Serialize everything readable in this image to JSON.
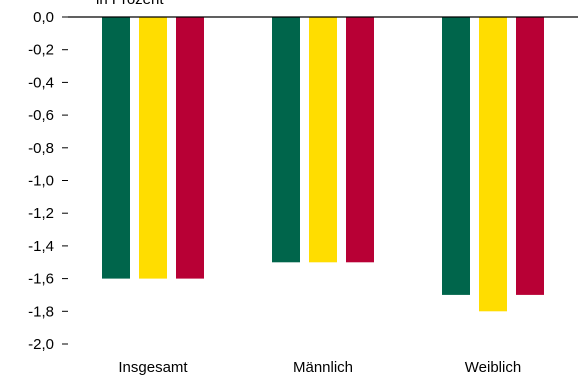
{
  "chart_data": {
    "type": "bar",
    "title": "in Prozent",
    "categories": [
      "Insgesamt",
      "Männlich",
      "Weiblich"
    ],
    "series": [
      {
        "values": [
          -1.6,
          -1.5,
          -1.7
        ],
        "color": "#00654b"
      },
      {
        "values": [
          -1.6,
          -1.5,
          -1.8
        ],
        "color": "#ffdd00"
      },
      {
        "values": [
          -1.6,
          -1.5,
          -1.7
        ],
        "color": "#b80035"
      }
    ],
    "ylim": [
      -2.0,
      0.0
    ],
    "yticks": [
      "0,0",
      "-0,2",
      "-0,4",
      "-0,6",
      "-0,8",
      "-1,0",
      "-1,2",
      "-1,4",
      "-1,6",
      "-1,8",
      "-2,0"
    ],
    "ytick_values": [
      0.0,
      -0.2,
      -0.4,
      -0.6,
      -0.8,
      -1.0,
      -1.2,
      -1.4,
      -1.6,
      -1.8,
      -2.0
    ],
    "grid": false,
    "legend": "none"
  }
}
